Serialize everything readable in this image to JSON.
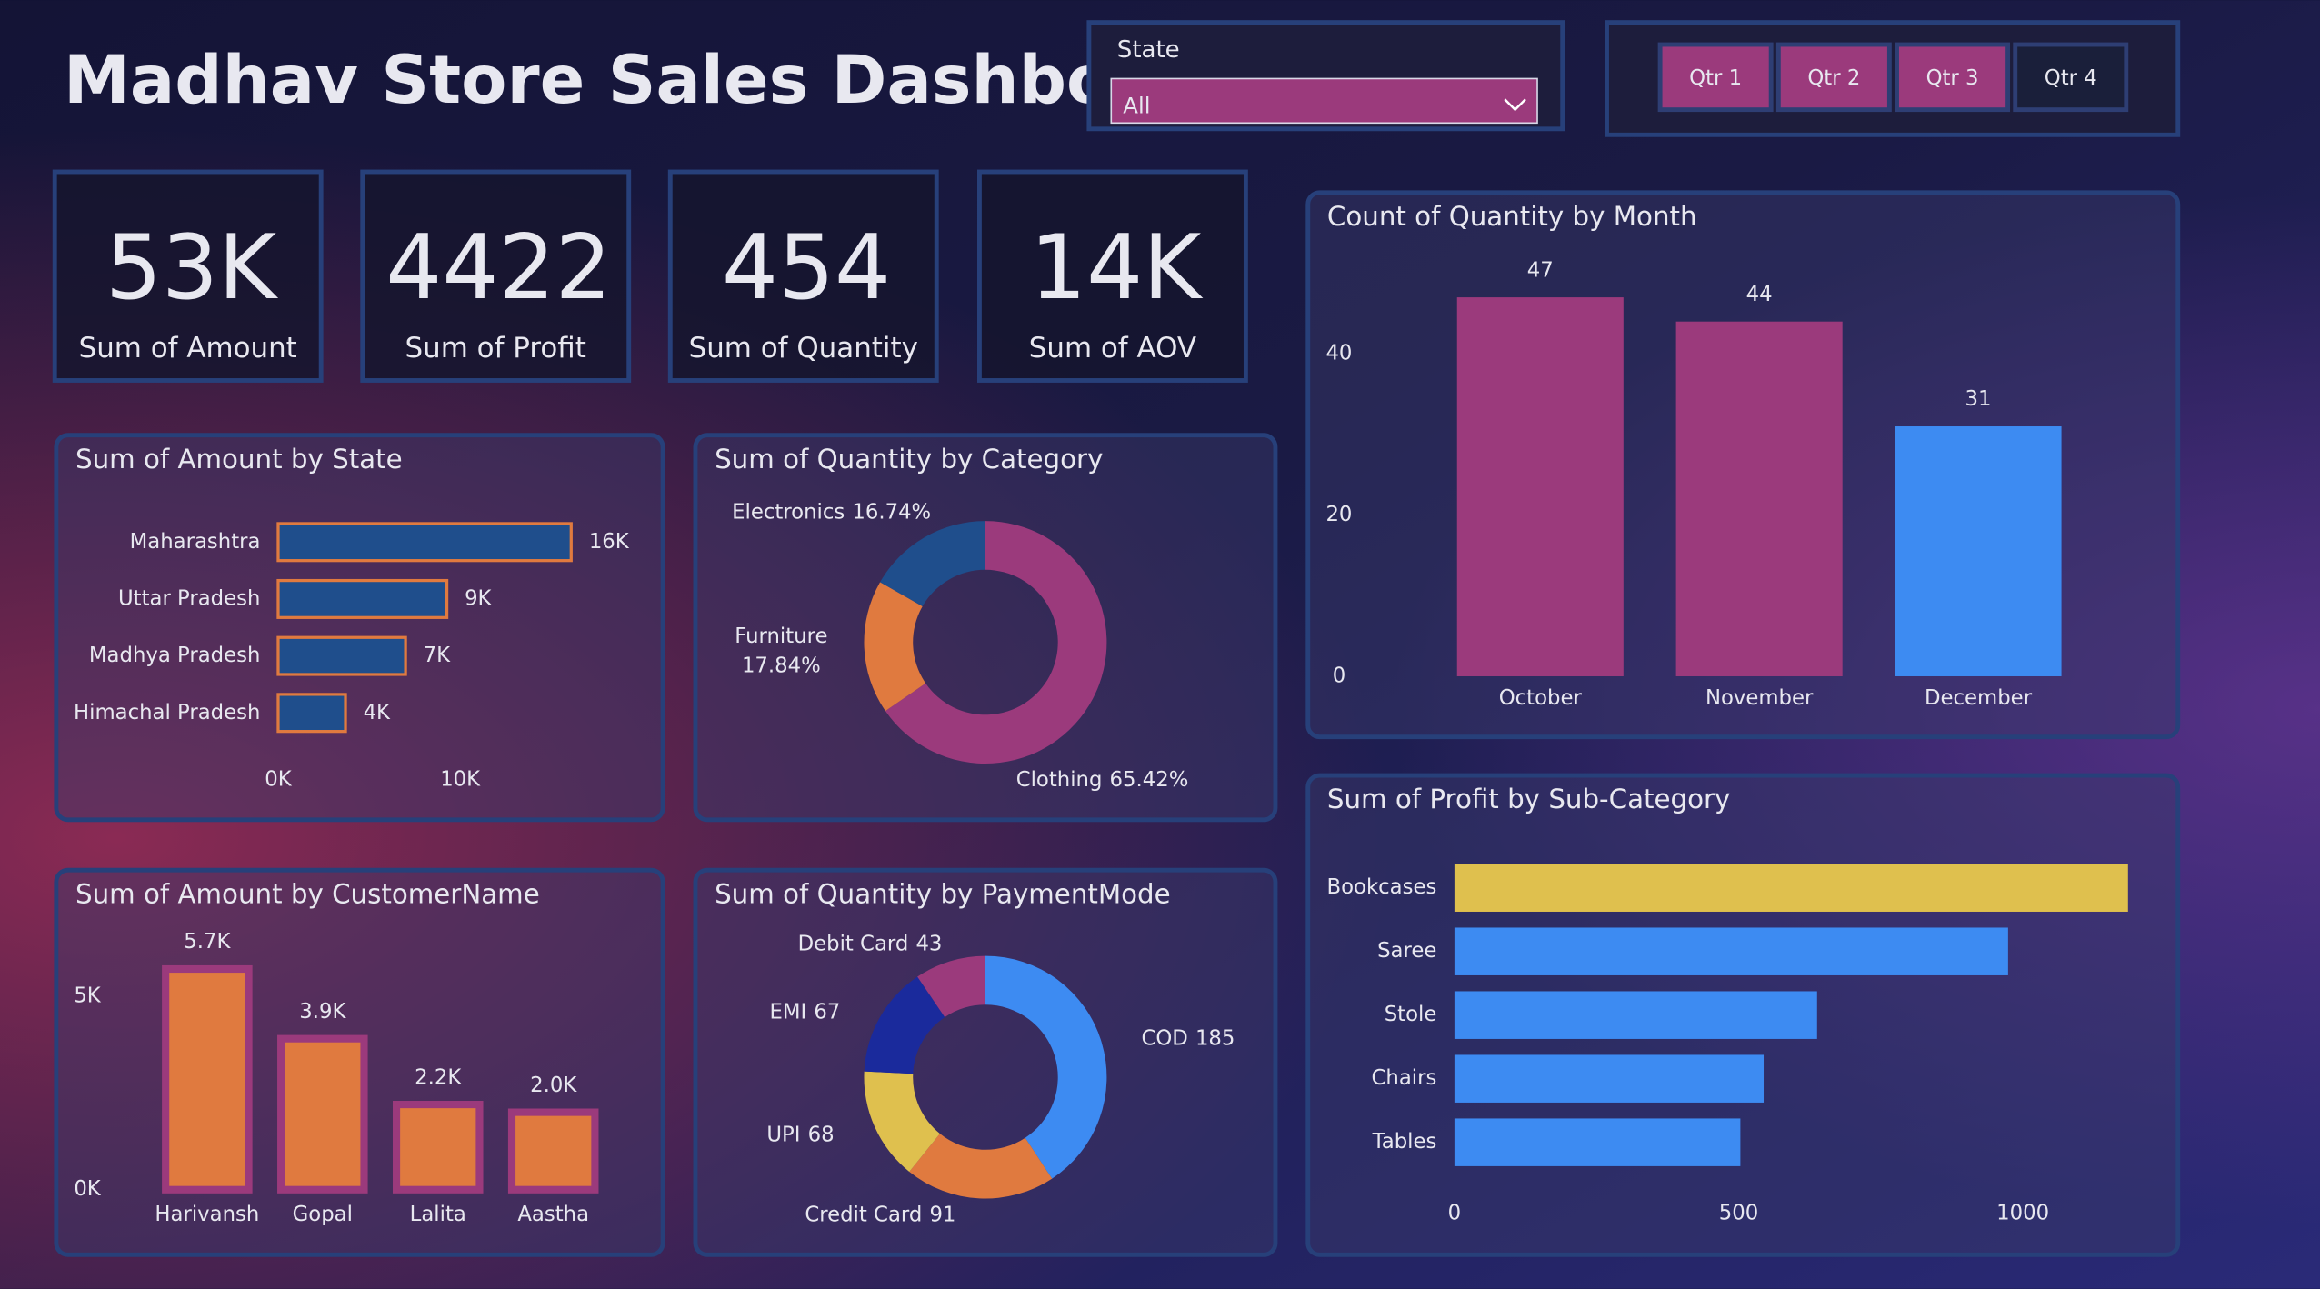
{
  "header": {
    "title": "Madhav Store Sales Dashboard"
  },
  "filters": {
    "state": {
      "label": "State",
      "value": "All"
    },
    "quarters": [
      "Qtr 1",
      "Qtr 2",
      "Qtr 3",
      "Qtr 4"
    ]
  },
  "kpis": [
    {
      "value": "53K",
      "label": "Sum of Amount"
    },
    {
      "value": "4422",
      "label": "Sum of Profit"
    },
    {
      "value": "454",
      "label": "Sum of Quantity"
    },
    {
      "value": "14K",
      "label": "Sum of AOV"
    }
  ],
  "chart_data": [
    {
      "type": "hbar",
      "title": "Sum of Amount by State",
      "categories": [
        "Maharashtra",
        "Uttar Pradesh",
        "Madhya Pradesh",
        "Himachal Pradesh"
      ],
      "values": [
        16100,
        9270,
        7000,
        3700
      ],
      "value_labels": [
        "16K",
        "9K",
        "7K",
        "4K"
      ],
      "color": "#1f4e8c",
      "edge_color": "#e07a3f",
      "xlim": [
        0,
        20000
      ],
      "xticks": [
        {
          "value": 0,
          "label": "0K"
        },
        {
          "value": 10000,
          "label": "10K"
        }
      ]
    },
    {
      "type": "donut",
      "title": "Sum of Quantity by Category",
      "categories": [
        "Clothing",
        "Furniture",
        "Electronics"
      ],
      "values": [
        65.42,
        17.84,
        16.74
      ],
      "value_labels": [
        "65.42%",
        "17.84%",
        "16.74%"
      ],
      "colors": [
        "#9b3a7c",
        "#e07a3f",
        "#1f4e8c"
      ]
    },
    {
      "type": "bar",
      "title": "Sum of Amount by CustomerName",
      "categories": [
        "Harivansh",
        "Gopal",
        "Lalita",
        "Aastha"
      ],
      "values": [
        5700,
        3900,
        2200,
        2000
      ],
      "value_labels": [
        "5.7K",
        "3.9K",
        "2.2K",
        "2.0K"
      ],
      "color": "#e07a3f",
      "edge_color": "#9b3a7c",
      "ylim": [
        0,
        6000
      ],
      "yticks": [
        {
          "value": 0,
          "label": "0K"
        },
        {
          "value": 5000,
          "label": "5K"
        }
      ]
    },
    {
      "type": "donut",
      "title": "Sum of Quantity by PaymentMode",
      "categories": [
        "COD",
        "Credit Card",
        "UPI",
        "EMI",
        "Debit Card"
      ],
      "values": [
        185,
        91,
        68,
        67,
        43
      ],
      "colors": [
        "#3d8bf2",
        "#e07a3f",
        "#dfc04e",
        "#1a2a9c",
        "#9b3a7c"
      ]
    },
    {
      "type": "bar",
      "title": "Count of Quantity by Month",
      "categories": [
        "October",
        "November",
        "December"
      ],
      "values": [
        47,
        44,
        31
      ],
      "colors": [
        "#9b3a7c",
        "#9b3a7c",
        "#3d8bf2"
      ],
      "ylim": [
        0,
        50
      ],
      "yticks": [
        0,
        20,
        40
      ]
    },
    {
      "type": "hbar",
      "title": "Sum of Profit by Sub-Category",
      "categories": [
        "Bookcases",
        "Saree",
        "Stole",
        "Chairs",
        "Tables"
      ],
      "values": [
        1185,
        974,
        638,
        544,
        503
      ],
      "colors": [
        "#dfc04e",
        "#3d8bf2",
        "#3d8bf2",
        "#3d8bf2",
        "#3d8bf2"
      ],
      "xlim": [
        0,
        1200
      ],
      "xticks": [
        0,
        500,
        1000
      ]
    }
  ]
}
